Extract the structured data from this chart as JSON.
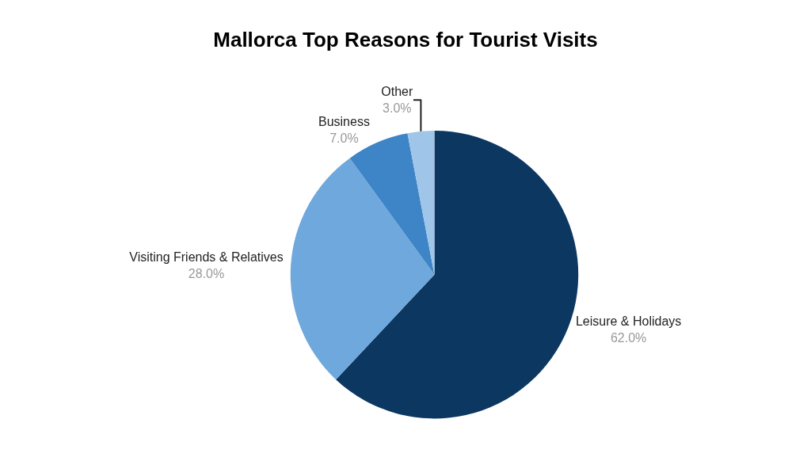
{
  "chart_data": {
    "type": "pie",
    "title": "Mallorca Top Reasons for Tourist Visits",
    "categories": [
      "Leisure & Holidays",
      "Visiting Friends & Relatives",
      "Business",
      "Other"
    ],
    "values": [
      62.0,
      28.0,
      7.0,
      3.0
    ],
    "value_labels": [
      "62.0%",
      "28.0%",
      "7.0%",
      "3.0%"
    ],
    "colors": [
      "#0b3761",
      "#6fa8dc",
      "#3d85c6",
      "#9fc5e8"
    ],
    "legend": false
  }
}
